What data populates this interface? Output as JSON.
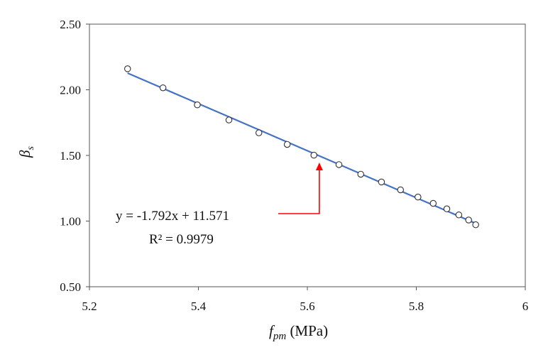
{
  "chart_data": {
    "type": "scatter",
    "xlabel_main": "f",
    "xlabel_sub": "pm",
    "xlabel_unit": " (MPa)",
    "ylabel_main": "β",
    "ylabel_sub": "s",
    "xlim": [
      5.2,
      6.0
    ],
    "ylim": [
      0.5,
      2.5
    ],
    "x_ticks": [
      5.2,
      5.4,
      5.6,
      5.8,
      6.0
    ],
    "x_tick_labels": [
      "5.2",
      "5.4",
      "5.6",
      "5.8",
      "6"
    ],
    "y_ticks": [
      0.5,
      1.0,
      1.5,
      2.0,
      2.5
    ],
    "y_tick_labels": [
      "0.50",
      "1.00",
      "1.50",
      "2.00",
      "2.50"
    ],
    "grid": false,
    "points": [
      {
        "x": 5.27,
        "y": 2.16
      },
      {
        "x": 5.335,
        "y": 2.015
      },
      {
        "x": 5.398,
        "y": 1.885
      },
      {
        "x": 5.456,
        "y": 1.77
      },
      {
        "x": 5.511,
        "y": 1.672
      },
      {
        "x": 5.563,
        "y": 1.584
      },
      {
        "x": 5.612,
        "y": 1.502
      },
      {
        "x": 5.658,
        "y": 1.43
      },
      {
        "x": 5.698,
        "y": 1.357
      },
      {
        "x": 5.736,
        "y": 1.298
      },
      {
        "x": 5.771,
        "y": 1.238
      },
      {
        "x": 5.803,
        "y": 1.183
      },
      {
        "x": 5.831,
        "y": 1.135
      },
      {
        "x": 5.856,
        "y": 1.093
      },
      {
        "x": 5.878,
        "y": 1.047
      },
      {
        "x": 5.896,
        "y": 1.008
      },
      {
        "x": 5.909,
        "y": 0.972
      }
    ],
    "trendline": {
      "slope": -1.792,
      "intercept": 11.571,
      "x_range": [
        5.27,
        5.909
      ]
    },
    "equation_label": "y = -1.792x + 11.571",
    "r2_label": "R² = 0.9979",
    "arrow_target": {
      "x": 5.622,
      "y": 1.5
    },
    "colors": {
      "line": "#4472C4",
      "marker": "#333333",
      "arrow": "#FF0000",
      "axis": "#555555"
    }
  }
}
